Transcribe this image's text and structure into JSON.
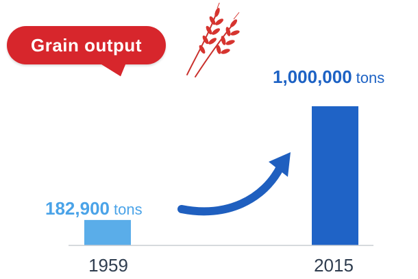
{
  "chart_data": {
    "type": "bar",
    "title": "Grain output",
    "categories": [
      "1959",
      "2015"
    ],
    "values": [
      182900,
      1000000
    ],
    "value_labels": [
      "182,900",
      "1,000,000"
    ],
    "unit": "tons",
    "colors": [
      "#5aade9",
      "#1f63c6"
    ],
    "ylim": [
      0,
      1000000
    ],
    "grid": false,
    "legend": "none",
    "arrow_color": "#1f5fbf",
    "title_color": "#d7262c"
  }
}
